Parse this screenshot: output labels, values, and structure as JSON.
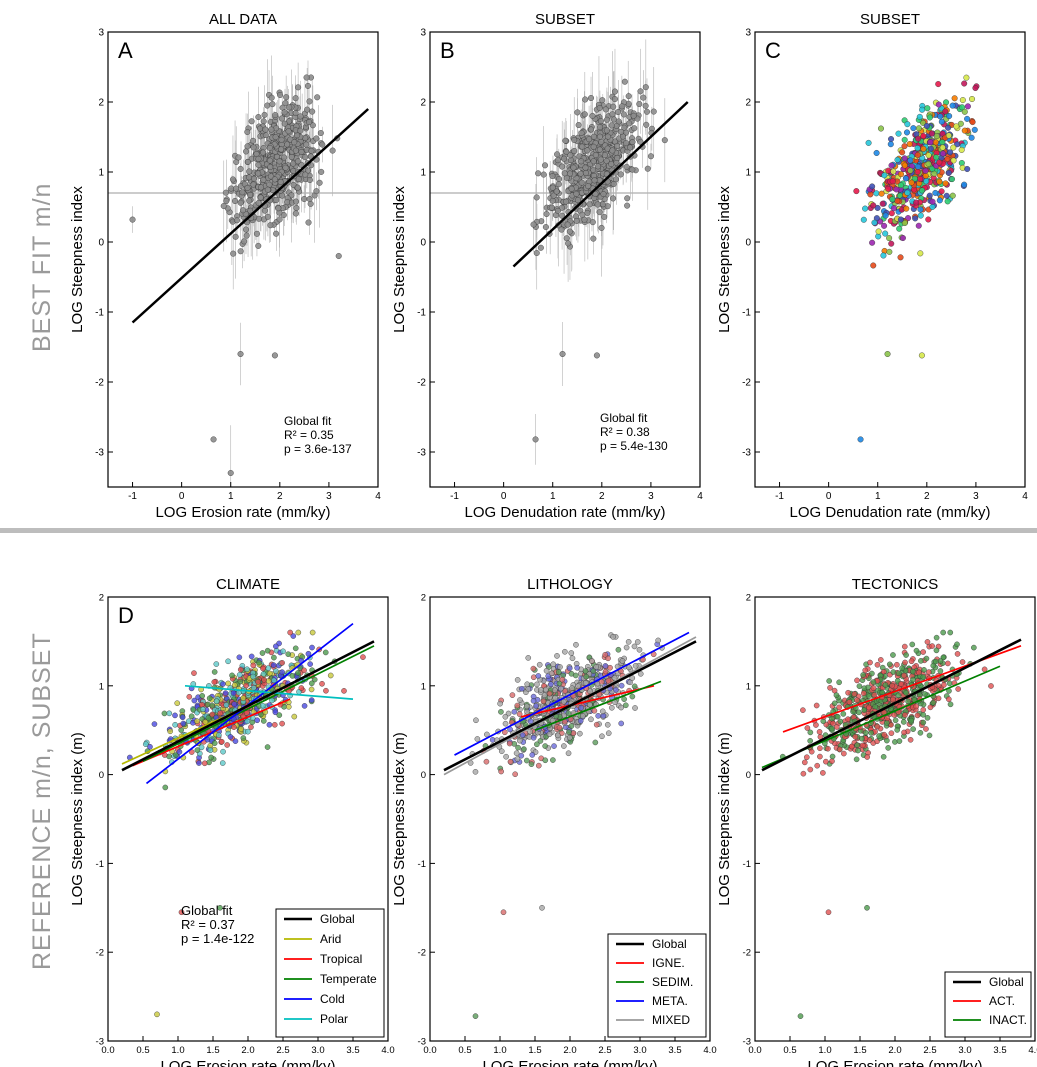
{
  "row_titles": {
    "top": "BEST FIT  m/n",
    "bottom": "REFERENCE m/n,  SUBSET"
  },
  "chart_data": [
    {
      "id": "A",
      "type": "scatter",
      "title": "ALL DATA",
      "panel_letter": "A",
      "xlabel": "LOG Erosion rate (mm/ky)",
      "ylabel": "LOG Steepness index",
      "xlim": [
        -1.5,
        4
      ],
      "ylim": [
        -3.5,
        3
      ],
      "xticks": [
        "-1",
        "0",
        "1",
        "2",
        "3",
        "4"
      ],
      "yticks": [
        "-3",
        "-2",
        "-1",
        "0",
        "1",
        "2",
        "3"
      ],
      "annotation": [
        "Global fit",
        "R² = 0.35",
        "p = 3.6e-137"
      ],
      "fit_line": {
        "x": [
          -1.0,
          3.8
        ],
        "y": [
          -1.15,
          1.9
        ]
      },
      "hline": 0.7,
      "error_bars": true,
      "marker_color": "#8c8c8c",
      "outliers": [
        [
          -1.0,
          0.32
        ],
        [
          0.65,
          -2.82
        ],
        [
          1.0,
          -3.3
        ],
        [
          1.9,
          -1.62
        ],
        [
          1.2,
          -1.6
        ],
        [
          3.2,
          -0.2
        ]
      ]
    },
    {
      "id": "B",
      "type": "scatter",
      "title": "SUBSET",
      "panel_letter": "B",
      "xlabel": "LOG Denudation rate (mm/ky)",
      "ylabel": "LOG Steepness index",
      "xlim": [
        -1.5,
        4
      ],
      "ylim": [
        -3.5,
        3
      ],
      "xticks": [
        "-1",
        "0",
        "1",
        "2",
        "3",
        "4"
      ],
      "yticks": [
        "-3",
        "-2",
        "-1",
        "0",
        "1",
        "2",
        "3"
      ],
      "annotation": [
        "Global fit",
        "R² = 0.38",
        "p = 5.4e-130"
      ],
      "fit_line": {
        "x": [
          0.2,
          3.75
        ],
        "y": [
          -0.35,
          2.0
        ]
      },
      "hline": 0.7,
      "error_bars": true,
      "marker_color": "#8c8c8c",
      "outliers": [
        [
          0.65,
          -2.82
        ],
        [
          1.9,
          -1.62
        ],
        [
          1.2,
          -1.6
        ]
      ]
    },
    {
      "id": "C",
      "type": "scatter",
      "title": "SUBSET",
      "panel_letter": "C",
      "xlabel": "LOG Denudation rate (mm/ky)",
      "ylabel": "LOG Steepness index",
      "xlim": [
        -1.5,
        4
      ],
      "ylim": [
        -3.5,
        3
      ],
      "xticks": [
        "-1",
        "0",
        "1",
        "2",
        "3",
        "4"
      ],
      "yticks": [
        "-3",
        "-2",
        "-1",
        "0",
        "1",
        "2",
        "3"
      ],
      "annotation": [],
      "error_bars": false,
      "multicolor": [
        "#e6194b",
        "#c2185b",
        "#3f51b5",
        "#1e88e5",
        "#d6e84a",
        "#8bc34a",
        "#26c6da",
        "#2ecc71",
        "#f57c00",
        "#e64a19",
        "#9c27b0"
      ],
      "outliers": [
        [
          0.65,
          -2.82
        ],
        [
          1.9,
          -1.62
        ],
        [
          1.2,
          -1.6
        ]
      ]
    },
    {
      "id": "D",
      "type": "scatter",
      "title": "CLIMATE",
      "panel_letter": "D",
      "xlabel": "LOG Erosion rate (mm/ky)",
      "ylabel": "LOG Steepness index (m)",
      "xlim": [
        0,
        4
      ],
      "ylim": [
        -3,
        2
      ],
      "xticks": [
        "0.0",
        "0.5",
        "1.0",
        "1.5",
        "2.0",
        "2.5",
        "3.0",
        "3.5",
        "4.0"
      ],
      "yticks": [
        "-3",
        "-2",
        "-1",
        "0",
        "1",
        "2"
      ],
      "annotation": [
        "Global fit",
        "R² = 0.37",
        "p = 1.4e-122"
      ],
      "legend": [
        {
          "name": "Global",
          "color": "#000000"
        },
        {
          "name": "Arid",
          "color": "#b5b800"
        },
        {
          "name": "Tropical",
          "color": "#ff0000"
        },
        {
          "name": "Temperate",
          "color": "#008000"
        },
        {
          "name": "Cold",
          "color": "#0000ff"
        },
        {
          "name": "Polar",
          "color": "#00bfbf"
        }
      ],
      "lines": [
        {
          "name": "Arid",
          "x": [
            0.2,
            1.8
          ],
          "y": [
            0.12,
            0.7
          ]
        },
        {
          "name": "Tropical",
          "x": [
            0.35,
            2.6
          ],
          "y": [
            0.1,
            0.85
          ]
        },
        {
          "name": "Temperate",
          "x": [
            0.5,
            3.8
          ],
          "y": [
            0.15,
            1.45
          ]
        },
        {
          "name": "Cold",
          "x": [
            0.55,
            3.5
          ],
          "y": [
            -0.1,
            1.7
          ]
        },
        {
          "name": "Polar",
          "x": [
            1.1,
            3.5
          ],
          "y": [
            1.0,
            0.85
          ]
        },
        {
          "name": "Global",
          "x": [
            0.2,
            3.8
          ],
          "y": [
            0.05,
            1.5
          ]
        }
      ],
      "point_colors": [
        "#c8c83c",
        "#e05050",
        "#4c9a4c",
        "#4a4ae0",
        "#5cc8c8"
      ],
      "outliers": [
        [
          0.7,
          -2.7
        ],
        [
          1.05,
          -1.55
        ],
        [
          1.6,
          -1.5
        ]
      ]
    },
    {
      "id": "E",
      "type": "scatter",
      "title": "LITHOLOGY",
      "panel_letter": "",
      "xlabel": "LOG Erosion rate (mm/ky)",
      "ylabel": "LOG Steepness index (m)",
      "xlim": [
        0,
        4
      ],
      "ylim": [
        -3,
        2
      ],
      "xticks": [
        "0.0",
        "0.5",
        "1.0",
        "1.5",
        "2.0",
        "2.5",
        "3.0",
        "3.5",
        "4.0"
      ],
      "yticks": [
        "-3",
        "-2",
        "-1",
        "0",
        "1",
        "2"
      ],
      "annotation": [],
      "legend": [
        {
          "name": "Global",
          "color": "#000000"
        },
        {
          "name": "IGNE.",
          "color": "#ff0000"
        },
        {
          "name": "SEDIM.",
          "color": "#008000"
        },
        {
          "name": "META.",
          "color": "#0000ff"
        },
        {
          "name": "MIXED",
          "color": "#999999"
        }
      ],
      "lines": [
        {
          "name": "IGNE.",
          "x": [
            1.3,
            3.2
          ],
          "y": [
            0.65,
            1.0
          ]
        },
        {
          "name": "SEDIM.",
          "x": [
            1.5,
            3.3
          ],
          "y": [
            0.5,
            1.05
          ]
        },
        {
          "name": "META.",
          "x": [
            0.35,
            3.7
          ],
          "y": [
            0.22,
            1.6
          ]
        },
        {
          "name": "MIXED",
          "x": [
            0.2,
            3.8
          ],
          "y": [
            0.0,
            1.55
          ]
        },
        {
          "name": "Global",
          "x": [
            0.2,
            3.8
          ],
          "y": [
            0.05,
            1.5
          ]
        }
      ],
      "point_colors": [
        "#a6a6a6",
        "#a6a6a6",
        "#a6a6a6",
        "#6a6ad8",
        "#5a9a5a",
        "#d86a6a"
      ],
      "outliers": [
        [
          0.65,
          -2.72
        ],
        [
          1.05,
          -1.55
        ],
        [
          1.6,
          -1.5
        ]
      ]
    },
    {
      "id": "F",
      "type": "scatter",
      "title": "TECTONICS",
      "panel_letter": "",
      "xlabel": "LOG Erosion rate (mm/ky)",
      "ylabel": "LOG Steepness index (m)",
      "xlim": [
        0,
        4
      ],
      "ylim": [
        -3,
        2
      ],
      "xticks": [
        "0.0",
        "0.5",
        "1.0",
        "1.5",
        "2.0",
        "2.5",
        "3.0",
        "3.5",
        "4.0"
      ],
      "yticks": [
        "-3",
        "-2",
        "-1",
        "0",
        "1",
        "2"
      ],
      "annotation": [],
      "legend": [
        {
          "name": "Global",
          "color": "#000000"
        },
        {
          "name": "ACT.",
          "color": "#ff0000"
        },
        {
          "name": "INACT.",
          "color": "#008000"
        }
      ],
      "lines": [
        {
          "name": "ACT.",
          "x": [
            0.4,
            3.8
          ],
          "y": [
            0.48,
            1.45
          ]
        },
        {
          "name": "INACT.",
          "x": [
            0.1,
            3.5
          ],
          "y": [
            0.08,
            1.22
          ]
        },
        {
          "name": "Global",
          "x": [
            0.1,
            3.8
          ],
          "y": [
            0.05,
            1.52
          ]
        }
      ],
      "point_colors": [
        "#4c9a4c",
        "#e05050"
      ],
      "outliers": [
        [
          0.65,
          -2.72
        ],
        [
          1.05,
          -1.55
        ],
        [
          1.6,
          -1.5
        ]
      ]
    }
  ]
}
